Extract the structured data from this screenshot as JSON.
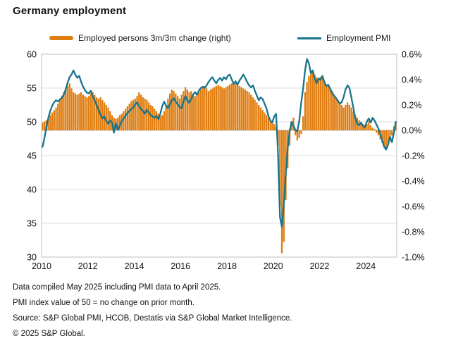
{
  "title": "Germany employment",
  "legend": [
    {
      "label": "Employed persons 3m/3m change (right)",
      "color": "#E07D10",
      "type": "bar"
    },
    {
      "label": "Employment PMI",
      "color": "#17748C",
      "type": "line"
    }
  ],
  "footer": {
    "lines": [
      "Data compiled May 2025 including PMI data to April 2025.",
      "PMI index value of 50 = no change on prior month.",
      "Source: S&P Global PMI, HCOB, Destatis via S&P Global Market Intelligence.",
      "© 2025 S&P Global."
    ]
  },
  "chart_data": {
    "type": "bar+line combo, monthly time series",
    "title": "Germany employment",
    "x_start": "2010-01",
    "x_end": "2025-04",
    "x_tick_labels": [
      "2010",
      "2012",
      "2014",
      "2016",
      "2018",
      "2020",
      "2022",
      "2024"
    ],
    "left_axis": {
      "series": "Employment PMI",
      "ticks": [
        60,
        55,
        50,
        45,
        40,
        35,
        30
      ],
      "range": [
        30,
        60
      ]
    },
    "right_axis": {
      "series": "Employed persons 3m/3m change",
      "ticks": [
        "0.6%",
        "0.4%",
        "0.2%",
        "0.0%",
        "-0.2%",
        "-0.4%",
        "-0.6%",
        "-0.8%",
        "-1.0%"
      ],
      "range": [
        -1.0,
        0.6
      ]
    },
    "grid": "horizontal gridlines at left-axis ticks",
    "legend_position": "top",
    "colors": {
      "bars": "#E07D10",
      "line": "#17748C",
      "gridline": "#DCDCDC",
      "border": "#BFBFBF",
      "zero_line": "#B3B3B3"
    },
    "series": [
      {
        "name": "Employed persons 3m/3m change (right)",
        "type": "bar",
        "axis": "right",
        "unit": "%",
        "values": [
          0.06,
          0.07,
          0.08,
          0.1,
          0.12,
          0.14,
          0.16,
          0.18,
          0.21,
          0.24,
          0.27,
          0.3,
          0.33,
          0.35,
          0.37,
          0.33,
          0.3,
          0.29,
          0.28,
          0.29,
          0.3,
          0.28,
          0.27,
          0.26,
          0.27,
          0.29,
          0.3,
          0.28,
          0.26,
          0.25,
          0.26,
          0.24,
          0.22,
          0.2,
          0.18,
          0.15,
          0.12,
          0.1,
          0.09,
          0.1,
          0.12,
          0.13,
          0.15,
          0.17,
          0.19,
          0.21,
          0.23,
          0.24,
          0.25,
          0.27,
          0.3,
          0.28,
          0.26,
          0.25,
          0.24,
          0.22,
          0.2,
          0.19,
          0.17,
          0.15,
          0.13,
          0.11,
          0.12,
          0.15,
          0.2,
          0.25,
          0.29,
          0.32,
          0.31,
          0.29,
          0.27,
          0.25,
          0.28,
          0.31,
          0.34,
          0.32,
          0.3,
          0.31,
          0.29,
          0.27,
          0.28,
          0.3,
          0.32,
          0.34,
          0.35,
          0.33,
          0.31,
          0.32,
          0.33,
          0.34,
          0.35,
          0.36,
          0.35,
          0.34,
          0.33,
          0.34,
          0.35,
          0.36,
          0.37,
          0.38,
          0.37,
          0.36,
          0.35,
          0.34,
          0.33,
          0.32,
          0.31,
          0.3,
          0.28,
          0.26,
          0.24,
          0.22,
          0.2,
          0.18,
          0.16,
          0.14,
          0.12,
          0.1,
          0.08,
          0.06,
          0.05,
          0.03,
          -0.12,
          -0.6,
          -0.97,
          -0.88,
          -0.55,
          -0.3,
          -0.12,
          0.06,
          0.1,
          -0.04,
          -0.08,
          -0.06,
          -0.03,
          0.11,
          0.3,
          0.38,
          0.43,
          0.45,
          0.46,
          0.44,
          0.42,
          0.41,
          0.42,
          0.43,
          0.38,
          0.35,
          0.36,
          0.33,
          0.31,
          0.28,
          0.26,
          0.24,
          0.22,
          0.2,
          0.18,
          0.2,
          0.22,
          0.2,
          0.18,
          0.15,
          0.12,
          0.1,
          0.08,
          0.06,
          0.05,
          0.04,
          0.05,
          0.07,
          0.04,
          0.02,
          0.01,
          -0.02,
          -0.04,
          -0.07,
          -0.1,
          -0.13,
          -0.15,
          -0.12,
          -0.08,
          -0.04,
          0.03,
          0.06
        ]
      },
      {
        "name": "Employment PMI",
        "type": "line",
        "axis": "left",
        "unit": "index",
        "values": [
          46.3,
          47.6,
          49.2,
          50.6,
          51.6,
          52.4,
          52.9,
          53.2,
          53.0,
          53.3,
          53.6,
          54.0,
          54.8,
          55.8,
          56.6,
          57.0,
          57.6,
          57.0,
          56.5,
          56.8,
          55.9,
          55.2,
          54.7,
          54.3,
          54.2,
          54.6,
          53.8,
          53.2,
          52.5,
          51.8,
          51.1,
          50.5,
          50.8,
          50.1,
          49.7,
          50.2,
          49.9,
          48.4,
          49.8,
          48.8,
          49.4,
          50.1,
          50.5,
          50.9,
          51.3,
          51.6,
          51.9,
          52.1,
          52.6,
          52.9,
          52.3,
          51.9,
          51.6,
          51.2,
          51.8,
          51.4,
          51.0,
          50.8,
          50.6,
          50.9,
          50.4,
          51.2,
          52.3,
          53.0,
          52.4,
          52.0,
          52.6,
          53.2,
          53.5,
          53.0,
          52.6,
          52.2,
          52.0,
          53.0,
          53.8,
          53.2,
          52.8,
          53.4,
          54.0,
          54.4,
          54.0,
          54.6,
          55.0,
          55.2,
          55.0,
          55.4,
          55.9,
          56.3,
          56.6,
          56.1,
          55.7,
          56.2,
          56.5,
          56.1,
          56.6,
          56.3,
          56.8,
          57.0,
          56.3,
          55.6,
          56.0,
          55.5,
          56.1,
          56.5,
          57.0,
          56.5,
          55.9,
          55.4,
          55.1,
          55.4,
          54.6,
          53.9,
          53.2,
          53.6,
          53.4,
          52.7,
          52.0,
          50.9,
          50.2,
          49.9,
          50.8,
          51.2,
          45.5,
          35.9,
          34.5,
          37.8,
          42.2,
          46.0,
          48.6,
          50.0,
          49.4,
          48.8,
          48.6,
          50.2,
          52.8,
          55.0,
          57.6,
          59.3,
          58.6,
          57.2,
          57.6,
          56.4,
          55.7,
          56.4,
          56.2,
          56.8,
          55.9,
          55.3,
          55.5,
          54.9,
          54.3,
          53.9,
          53.5,
          53.1,
          52.7,
          52.9,
          53.7,
          54.8,
          55.4,
          55.0,
          53.6,
          52.1,
          50.6,
          49.7,
          49.5,
          49.9,
          49.4,
          49.2,
          50.0,
          50.5,
          49.9,
          50.6,
          50.2,
          49.6,
          49.0,
          48.2,
          47.2,
          46.3,
          45.9,
          46.6,
          47.8,
          47.0,
          48.4,
          50.0
        ]
      }
    ]
  }
}
